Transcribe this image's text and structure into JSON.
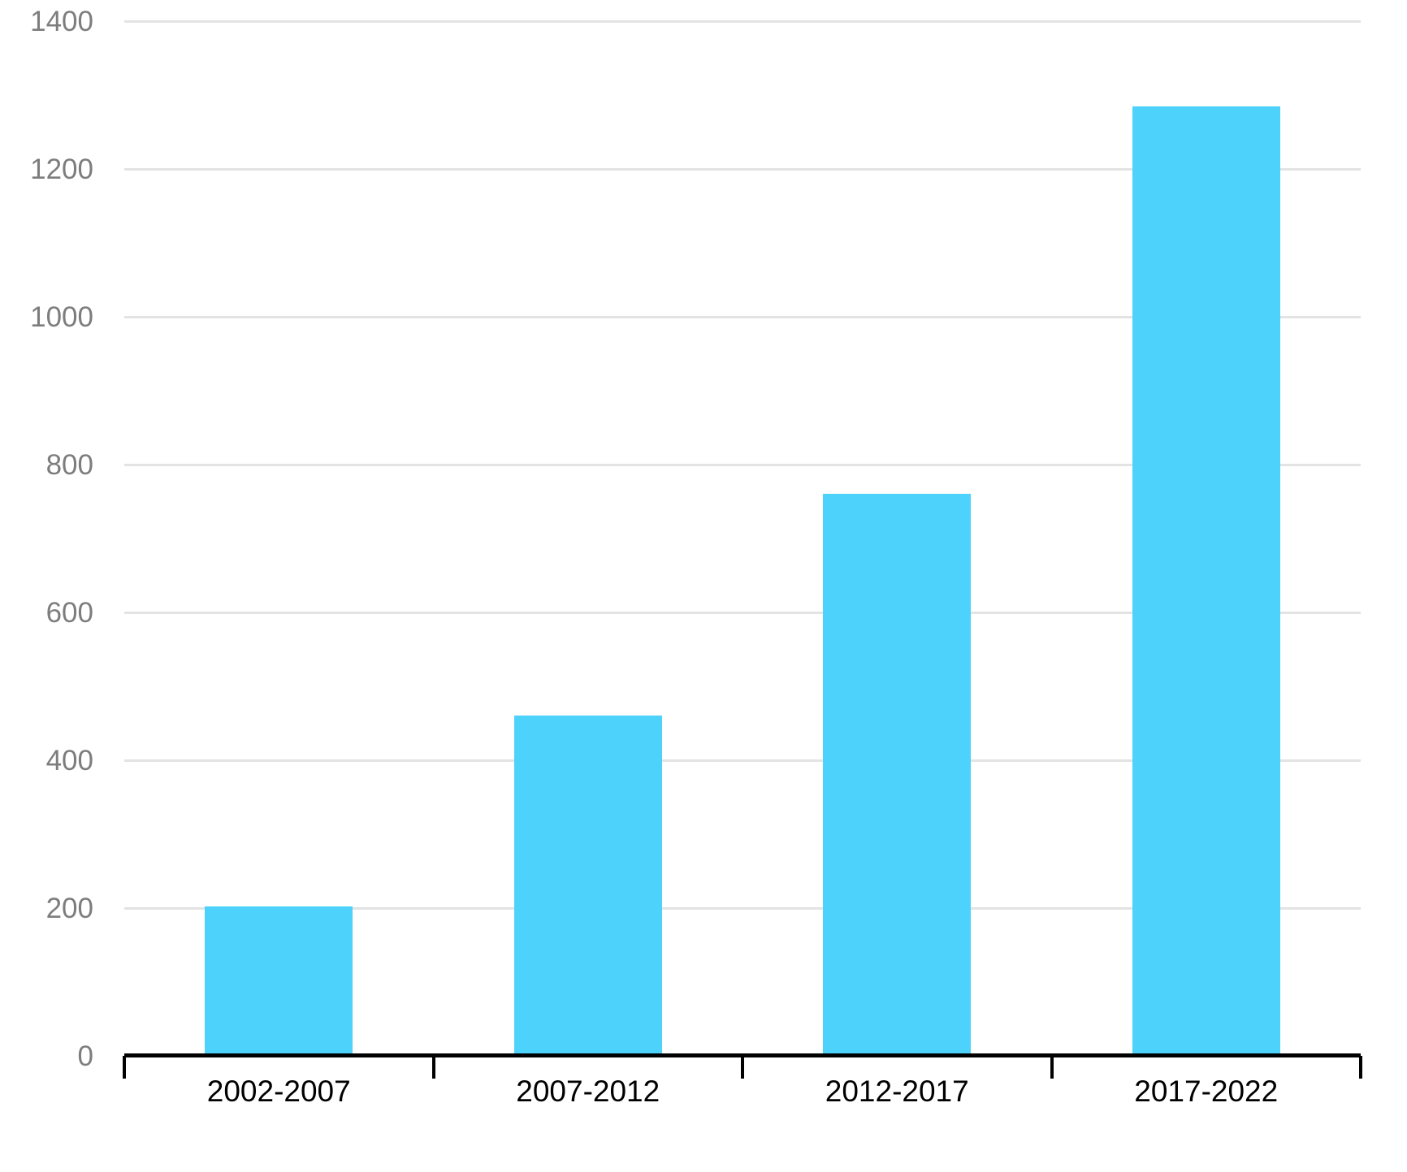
{
  "chart_data": {
    "type": "bar",
    "categories": [
      "2002-2007",
      "2007-2012",
      "2012-2017",
      "2017-2022"
    ],
    "values": [
      202,
      460,
      760,
      1285
    ],
    "title": "",
    "xlabel": "",
    "ylabel": "",
    "ylim": [
      0,
      1400
    ],
    "yticks": [
      0,
      200,
      400,
      600,
      800,
      1000,
      1200,
      1400
    ],
    "grid": true,
    "legend_position": "none",
    "colors": {
      "bar_fill": "#4dd2fb",
      "gridline": "#e3e3e3",
      "axis_line": "#000000",
      "y_tick_label": "#7d7d7d",
      "x_tick_label": "#000000",
      "background": "#ffffff"
    }
  }
}
